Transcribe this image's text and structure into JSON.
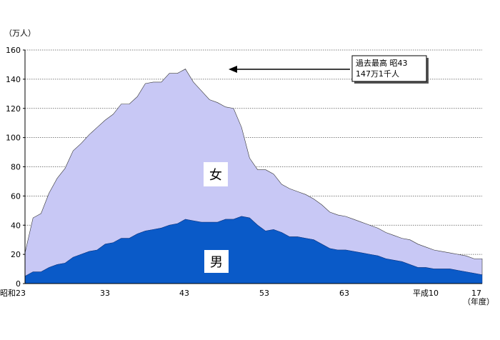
{
  "chart_data": {
    "type": "area",
    "stacked": true,
    "yunit": "（万人）",
    "xunit": "（年度）",
    "ylim": [
      0,
      160
    ],
    "yticks": [
      0,
      20,
      40,
      60,
      80,
      100,
      120,
      140,
      160
    ],
    "grid": true,
    "x_tick_labels": [
      "昭和23",
      "33",
      "43",
      "53",
      "63",
      "平成10",
      "17"
    ],
    "series": [
      {
        "name": "男",
        "color": "#0a5ac8",
        "values": [
          5,
          8,
          8,
          11,
          13,
          14,
          18,
          20,
          22,
          23,
          27,
          28,
          31,
          31,
          34,
          36,
          37,
          38,
          40,
          41,
          44,
          43,
          42,
          42,
          42,
          44,
          44,
          46,
          45,
          40,
          36,
          37,
          35,
          32,
          32,
          31,
          30,
          27,
          24,
          23,
          23,
          22,
          21,
          20,
          19,
          17,
          16,
          15,
          13,
          11,
          11,
          10,
          10,
          10,
          9,
          8,
          7,
          6
        ]
      },
      {
        "name": "女",
        "color": "#c8c8f5",
        "values": [
          16,
          37,
          40,
          51,
          59,
          65,
          73,
          76,
          80,
          84,
          85,
          88,
          92,
          92,
          94,
          101,
          101,
          100,
          104,
          103,
          103,
          95,
          90,
          84,
          82,
          77,
          76,
          61,
          41,
          38,
          42,
          38,
          33,
          33,
          31,
          30,
          28,
          27,
          25,
          24,
          23,
          22,
          21,
          20,
          19,
          18,
          17,
          16,
          17,
          16,
          14,
          13,
          12,
          11,
          11,
          11,
          10,
          11
        ]
      }
    ],
    "annotation": {
      "line1": "過去最高  昭43",
      "line2": "147万1千人"
    }
  }
}
